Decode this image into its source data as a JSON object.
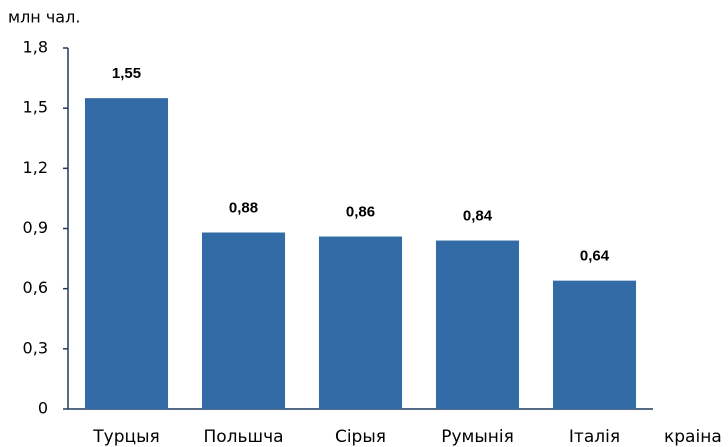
{
  "chart_data": {
    "type": "bar",
    "y_label": "млн чал.",
    "x_label": "краіна",
    "categories": [
      "Турцыя",
      "Польшча",
      "Сірыя",
      "Румынія",
      "Італія"
    ],
    "values": [
      1.55,
      0.88,
      0.86,
      0.84,
      0.64
    ],
    "value_labels": [
      "1,55",
      "0,88",
      "0,86",
      "0,84",
      "0,64"
    ],
    "color": "#336ba6",
    "ylim": [
      0,
      1.8
    ],
    "yticks": [
      0,
      {
        "value": 0.3,
        "label": "0,3"
      },
      {
        "value": 0.6,
        "label": "0,6"
      },
      {
        "value": 0.9,
        "label": "0,9"
      },
      {
        "value": 1.2,
        "label": "1,2"
      },
      {
        "value": 1.5,
        "label": "1,5"
      },
      {
        "value": 1.8,
        "label": "1,8"
      }
    ],
    "grid": false
  }
}
